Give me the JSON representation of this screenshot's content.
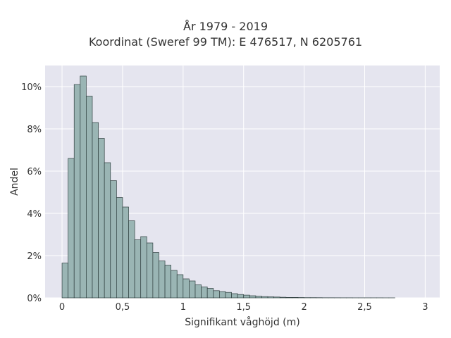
{
  "chart_data": {
    "type": "bar",
    "title_lines": [
      "År 1979 - 2019",
      "Koordinat (Sweref 99 TM): E 476517, N 6205761"
    ],
    "xlabel": "Signifikant våghöjd (m)",
    "ylabel": "Andel",
    "bin_width": 0.05,
    "bin_starts": [
      0,
      0.05,
      0.1,
      0.15,
      0.2,
      0.25,
      0.3,
      0.35,
      0.4,
      0.45,
      0.5,
      0.55,
      0.6,
      0.65,
      0.7,
      0.75,
      0.8,
      0.85,
      0.9,
      0.95,
      1.0,
      1.05,
      1.1,
      1.15,
      1.2,
      1.25,
      1.3,
      1.35,
      1.4,
      1.45,
      1.5,
      1.55,
      1.6,
      1.65,
      1.7,
      1.75,
      1.8,
      1.85,
      1.9,
      1.95,
      2.0,
      2.05,
      2.1,
      2.15,
      2.2,
      2.25,
      2.3,
      2.35,
      2.4,
      2.45,
      2.5,
      2.55,
      2.6,
      2.65,
      2.7
    ],
    "values": [
      1.65,
      6.6,
      10.1,
      10.5,
      9.55,
      8.3,
      7.55,
      6.4,
      5.55,
      4.75,
      4.3,
      3.65,
      2.75,
      2.9,
      2.6,
      2.15,
      1.75,
      1.55,
      1.3,
      1.1,
      0.9,
      0.8,
      0.62,
      0.52,
      0.45,
      0.34,
      0.3,
      0.26,
      0.2,
      0.16,
      0.13,
      0.1,
      0.08,
      0.06,
      0.05,
      0.04,
      0.03,
      0.02,
      0.02,
      0.015,
      0.01,
      0.01,
      0.008,
      0.005,
      0.005,
      0.004,
      0.003,
      0.003,
      0.002,
      0.002,
      0.002,
      0.002,
      0.002,
      0.001,
      0.001
    ],
    "xlim": [
      -0.14,
      3.12
    ],
    "ylim": [
      0,
      11.0
    ],
    "xticks": [
      0,
      0.5,
      1,
      1.5,
      2,
      2.5,
      3
    ],
    "xtick_labels": [
      "0",
      "0,5",
      "1",
      "1,5",
      "2",
      "2,5",
      "3"
    ],
    "yticks": [
      0,
      2,
      4,
      6,
      8,
      10
    ],
    "ytick_labels": [
      "0%",
      "2%",
      "4%",
      "6%",
      "8%",
      "10%"
    ],
    "grid": true,
    "legend": "none",
    "bar_color": "#9ab5b4",
    "bar_edge_color": "#2f3f3f",
    "plot_background": "#e5e5ef",
    "grid_color": "#ffffff"
  }
}
